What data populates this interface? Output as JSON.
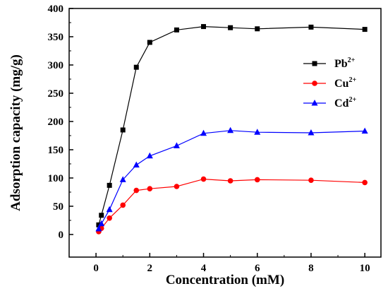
{
  "chart_data": {
    "type": "line",
    "xlabel": "Concentration (mM)",
    "ylabel": "Adsorption capacity (mg/g)",
    "xlim": [
      -1,
      10.6
    ],
    "ylim": [
      -40,
      400
    ],
    "x_ticks": [
      0,
      2,
      4,
      6,
      8,
      10
    ],
    "y_ticks": [
      0,
      50,
      100,
      150,
      200,
      250,
      300,
      350,
      400
    ],
    "legend_position": "right-middle",
    "series": [
      {
        "name": "Pb",
        "charge": "2+",
        "color": "#000000",
        "marker": "square",
        "x": [
          0.1,
          0.2,
          0.5,
          1,
          1.5,
          2,
          3,
          4,
          5,
          6,
          8,
          10
        ],
        "values": [
          17,
          34,
          87,
          185,
          296,
          340,
          362,
          368,
          366,
          364,
          367,
          363
        ]
      },
      {
        "name": "Cu",
        "charge": "2+",
        "color": "#ff0000",
        "marker": "circle",
        "x": [
          0.1,
          0.2,
          0.5,
          1,
          1.5,
          2,
          3,
          4,
          5,
          6,
          8,
          10
        ],
        "values": [
          5,
          11,
          29,
          52,
          78,
          81,
          85,
          98,
          95,
          97,
          96,
          92
        ]
      },
      {
        "name": "Cd",
        "charge": "2+",
        "color": "#0000ff",
        "marker": "triangle",
        "x": [
          0.1,
          0.2,
          0.5,
          1,
          1.5,
          2,
          3,
          4,
          5,
          6,
          8,
          10
        ],
        "values": [
          10,
          19,
          44,
          97,
          123,
          139,
          157,
          179,
          184,
          181,
          180,
          183
        ]
      }
    ]
  }
}
